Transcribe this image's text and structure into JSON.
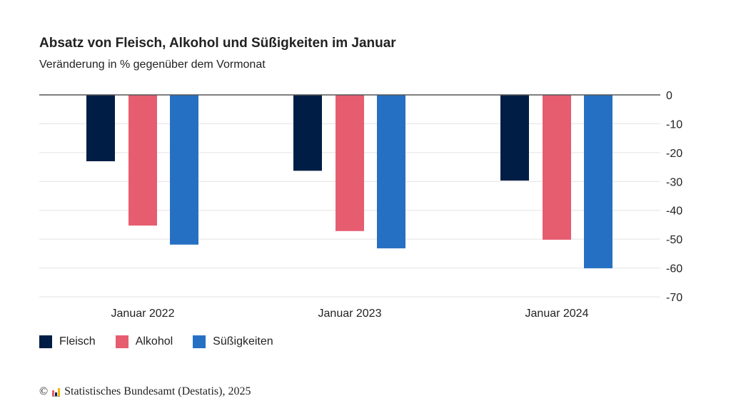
{
  "chart_data": {
    "type": "bar",
    "title": "Absatz von Fleisch, Alkohol und Süßigkeiten im Januar",
    "subtitle": "Veränderung in % gegenüber dem Vormonat",
    "categories": [
      "Januar 2022",
      "Januar 2023",
      "Januar 2024"
    ],
    "series": [
      {
        "name": "Fleisch",
        "color": "#001e45",
        "values": [
          -23.0,
          -26.3,
          -29.7
        ]
      },
      {
        "name": "Alkohol",
        "color": "#e65d70",
        "values": [
          -45.3,
          -47.2,
          -50.2
        ]
      },
      {
        "name": "Süßigkeiten",
        "color": "#2670c4",
        "values": [
          -51.9,
          -53.2,
          -60.1
        ]
      }
    ],
    "ylim": [
      -70,
      0
    ],
    "yticks": [
      "0",
      "-10",
      "-20",
      "-30",
      "-40",
      "-50",
      "-60",
      "-70"
    ],
    "ytick_values": [
      0,
      -10,
      -20,
      -30,
      -40,
      -50,
      -60,
      -70
    ],
    "y_axis_side": "right",
    "grid": true,
    "legend": "bottom-left"
  },
  "source": {
    "copyright": "©",
    "text": "Statistisches Bundesamt (Destatis), 2025"
  }
}
